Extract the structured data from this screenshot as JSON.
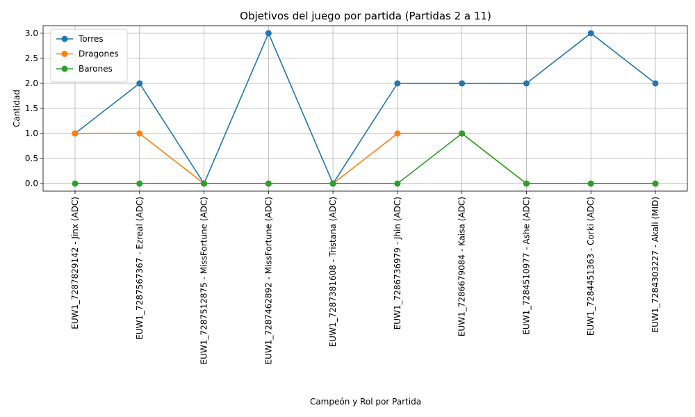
{
  "chart_data": {
    "type": "line",
    "title": "Objetivos del juego por partida (Partidas 2 a 11)",
    "xlabel": "Campeón y Rol por Partida",
    "ylabel": "Cantidad",
    "categories": [
      "EUW1_7287829142 - Jinx (ADC)",
      "EUW1_7287567367 - Ezreal (ADC)",
      "EUW1_7287512875 - MissFortune (ADC)",
      "EUW1_7287462892 - MissFortune (ADC)",
      "EUW1_7287381608 - Tristana (ADC)",
      "EUW1_7286736979 - Jhin (ADC)",
      "EUW1_7286679084 - Kaisa (ADC)",
      "EUW1_7284510977 - Ashe (ADC)",
      "EUW1_7284451363 - Corki (ADC)",
      "EUW1_7284303227 - Akali (MID)"
    ],
    "series": [
      {
        "name": "Torres",
        "color": "#1f77b4",
        "values": [
          1,
          2,
          0,
          3,
          0,
          2,
          2,
          2,
          3,
          2
        ]
      },
      {
        "name": "Dragones",
        "color": "#ff7f0e",
        "values": [
          1,
          1,
          0,
          0,
          0,
          1,
          1,
          0,
          0,
          0
        ]
      },
      {
        "name": "Barones",
        "color": "#2ca02c",
        "values": [
          0,
          0,
          0,
          0,
          0,
          0,
          1,
          0,
          0,
          0
        ]
      }
    ],
    "ylim": [
      -0.15,
      3.15
    ],
    "yticks": [
      "0.0",
      "0.5",
      "1.0",
      "1.5",
      "2.0",
      "2.5",
      "3.0"
    ],
    "grid": true,
    "legend_position": "top-left"
  }
}
